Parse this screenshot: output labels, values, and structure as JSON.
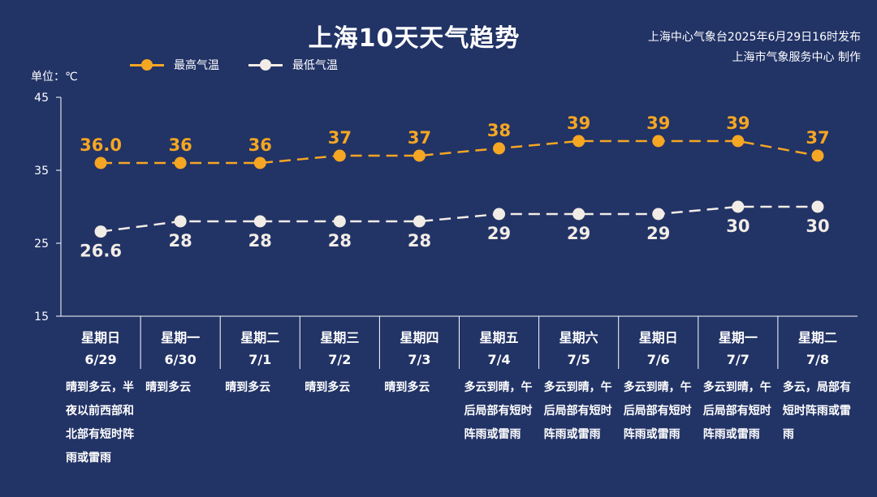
{
  "header": {
    "title": "上海10天天气趋势",
    "issuer_line1": "上海中心气象台2025年6月29日16时发布",
    "issuer_line2": "上海市气象服务中心 制作",
    "unit": "单位：℃"
  },
  "legend": {
    "high": "最高气温",
    "low": "最低气温"
  },
  "colors": {
    "background": "#223366",
    "high": "#F5A623",
    "low": "#F2ECE6",
    "axis": "#FFFFFF"
  },
  "chart_data": {
    "type": "line",
    "title": "上海10天天气趋势",
    "ylabel": "单位：℃",
    "ylim": [
      15,
      45
    ],
    "yticks": [
      45,
      35,
      25,
      15
    ],
    "grid": false,
    "legend_position": "top-left",
    "days": [
      {
        "weekday": "星期日",
        "date": "6/29",
        "desc": "晴到多云，半夜以前西部和北部有短时阵雨或雷雨"
      },
      {
        "weekday": "星期一",
        "date": "6/30",
        "desc": "晴到多云"
      },
      {
        "weekday": "星期二",
        "date": "7/1",
        "desc": "晴到多云"
      },
      {
        "weekday": "星期三",
        "date": "7/2",
        "desc": "晴到多云"
      },
      {
        "weekday": "星期四",
        "date": "7/3",
        "desc": "晴到多云"
      },
      {
        "weekday": "星期五",
        "date": "7/4",
        "desc": "多云到晴，午后局部有短时阵雨或雷雨"
      },
      {
        "weekday": "星期六",
        "date": "7/5",
        "desc": "多云到晴，午后局部有短时阵雨或雷雨"
      },
      {
        "weekday": "星期日",
        "date": "7/6",
        "desc": "多云到晴，午后局部有短时阵雨或雷雨"
      },
      {
        "weekday": "星期一",
        "date": "7/7",
        "desc": "多云到晴，午后局部有短时阵雨或雷雨"
      },
      {
        "weekday": "星期二",
        "date": "7/8",
        "desc": "多云，局部有短时阵雨或雷雨"
      }
    ],
    "series": [
      {
        "name": "最高气温",
        "values": [
          36.0,
          36,
          36,
          37,
          37,
          38,
          39,
          39,
          39,
          37
        ],
        "labels": [
          "36.0",
          "36",
          "36",
          "37",
          "37",
          "38",
          "39",
          "39",
          "39",
          "37"
        ]
      },
      {
        "name": "最低气温",
        "values": [
          26.6,
          28,
          28,
          28,
          28,
          29,
          29,
          29,
          30,
          30
        ],
        "labels": [
          "26.6",
          "28",
          "28",
          "28",
          "28",
          "29",
          "29",
          "29",
          "30",
          "30"
        ]
      }
    ]
  }
}
